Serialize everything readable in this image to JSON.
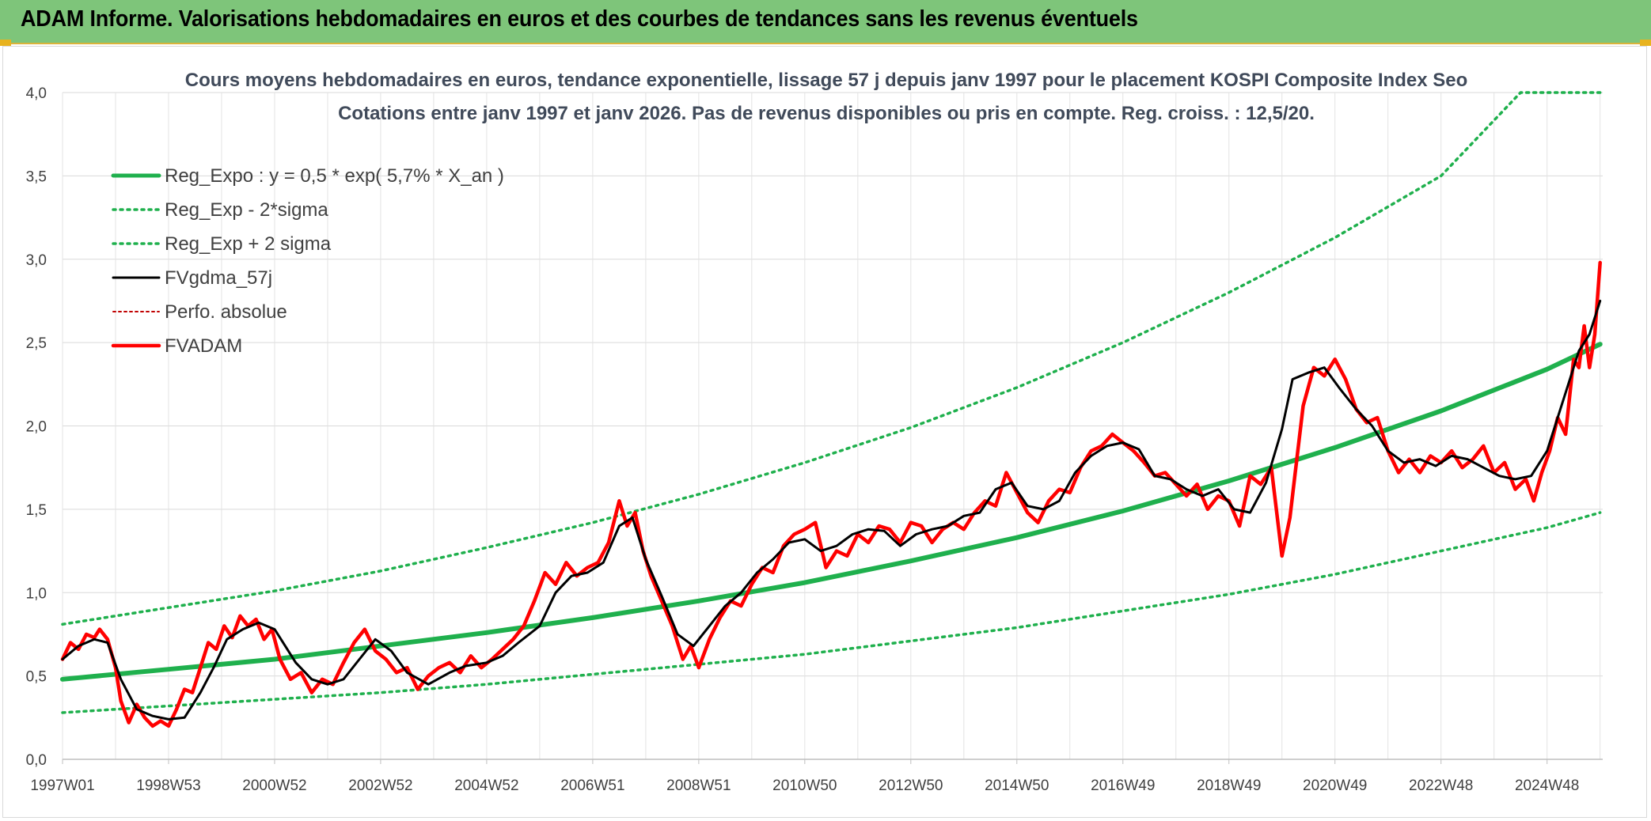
{
  "banner": {
    "title": "ADAM Informe. Valorisations hebdomadaires en euros et des courbes de tendances sans les revenus éventuels"
  },
  "colors": {
    "banner_bg": "#7ec57a",
    "reg_expo": "#1fb04d",
    "fvgdma": "#000000",
    "fvadam": "#ff0000",
    "perfo": "#c00000"
  },
  "chart_data": {
    "type": "line",
    "title": "Cours moyens hebdomadaires en euros, tendance exponentielle, lissage 57 j depuis janv 1997 pour le placement KOSPI Composite Index Seo",
    "subtitle": "Cotations entre janv 1997 et janv 2026. Pas de revenus disponibles ou pris en compte. Reg. croiss. : 12,5/20.",
    "xlim": [
      1997.0,
      2026.05
    ],
    "ylim": [
      0,
      4.0
    ],
    "grid": true,
    "legend_position": "top-left",
    "y_ticks": [
      "0,0",
      "0,5",
      "1,0",
      "1,5",
      "2,0",
      "2,5",
      "3,0",
      "3,5",
      "4,0"
    ],
    "x_ticks": [
      {
        "x": 1997.0,
        "label": "1997W01"
      },
      {
        "x": 1999.0,
        "label": "1998W53"
      },
      {
        "x": 2001.0,
        "label": "2000W52"
      },
      {
        "x": 2003.0,
        "label": "2002W52"
      },
      {
        "x": 2005.0,
        "label": "2004W52"
      },
      {
        "x": 2007.0,
        "label": "2006W51"
      },
      {
        "x": 2009.0,
        "label": "2008W51"
      },
      {
        "x": 2011.0,
        "label": "2010W50"
      },
      {
        "x": 2013.0,
        "label": "2012W50"
      },
      {
        "x": 2015.0,
        "label": "2014W50"
      },
      {
        "x": 2017.0,
        "label": "2016W49"
      },
      {
        "x": 2019.0,
        "label": "2018W49"
      },
      {
        "x": 2021.0,
        "label": "2020W49"
      },
      {
        "x": 2023.0,
        "label": "2022W48"
      },
      {
        "x": 2025.0,
        "label": "2024W48"
      }
    ],
    "series": [
      {
        "name": "Reg_Expo : y = 0,5 * exp( 5,7% *  X_an )",
        "key": "reg",
        "x": [
          1997.0,
          1999.0,
          2001.0,
          2003.0,
          2005.0,
          2007.0,
          2009.0,
          2011.0,
          2013.0,
          2015.0,
          2017.0,
          2019.0,
          2021.0,
          2023.0,
          2025.0,
          2026.0
        ],
        "values": [
          0.48,
          0.54,
          0.6,
          0.68,
          0.76,
          0.85,
          0.95,
          1.06,
          1.19,
          1.33,
          1.49,
          1.67,
          1.87,
          2.09,
          2.34,
          2.49
        ]
      },
      {
        "name": "Reg_Exp - 2*sigma",
        "key": "lower",
        "x": [
          1997.0,
          1999.0,
          2001.0,
          2003.0,
          2005.0,
          2007.0,
          2009.0,
          2011.0,
          2013.0,
          2015.0,
          2017.0,
          2019.0,
          2021.0,
          2023.0,
          2025.0,
          2026.0
        ],
        "values": [
          0.28,
          0.32,
          0.36,
          0.4,
          0.45,
          0.51,
          0.57,
          0.63,
          0.71,
          0.79,
          0.89,
          0.99,
          1.11,
          1.25,
          1.39,
          1.48
        ]
      },
      {
        "name": "Reg_Exp + 2 sigma",
        "key": "upper",
        "x": [
          1997.0,
          1999.0,
          2001.0,
          2003.0,
          2005.0,
          2007.0,
          2009.0,
          2011.0,
          2013.0,
          2015.0,
          2017.0,
          2019.0,
          2021.0,
          2023.0,
          2024.5,
          2025.0,
          2026.0
        ],
        "values": [
          0.81,
          0.91,
          1.01,
          1.13,
          1.27,
          1.42,
          1.59,
          1.78,
          1.99,
          2.23,
          2.5,
          2.8,
          3.13,
          3.5,
          4.0,
          4.0,
          4.0
        ]
      },
      {
        "name": "FVgdma_57j",
        "key": "smooth",
        "x": [
          1997.0,
          1997.3,
          1997.6,
          1997.85,
          1998.1,
          1998.4,
          1998.7,
          1999.0,
          1999.3,
          1999.6,
          1999.85,
          2000.1,
          2000.4,
          2000.7,
          2001.0,
          2001.4,
          2001.7,
          2002.0,
          2002.3,
          2002.6,
          2002.9,
          2003.2,
          2003.5,
          2003.9,
          2004.3,
          2004.6,
          2005.0,
          2005.3,
          2005.6,
          2006.0,
          2006.3,
          2006.6,
          2006.9,
          2007.2,
          2007.5,
          2007.75,
          2008.0,
          2008.3,
          2008.6,
          2008.9,
          2009.2,
          2009.5,
          2009.8,
          2010.1,
          2010.4,
          2010.7,
          2011.0,
          2011.3,
          2011.6,
          2011.9,
          2012.2,
          2012.5,
          2012.8,
          2013.1,
          2013.4,
          2013.7,
          2014.0,
          2014.3,
          2014.6,
          2014.9,
          2015.2,
          2015.5,
          2015.8,
          2016.1,
          2016.4,
          2016.7,
          2017.0,
          2017.3,
          2017.6,
          2017.9,
          2018.2,
          2018.5,
          2018.8,
          2019.1,
          2019.4,
          2019.7,
          2020.0,
          2020.2,
          2020.5,
          2020.8,
          2021.1,
          2021.4,
          2021.7,
          2022.0,
          2022.3,
          2022.6,
          2022.9,
          2023.2,
          2023.5,
          2023.8,
          2024.1,
          2024.4,
          2024.7,
          2025.0,
          2025.3,
          2025.6,
          2025.8,
          2026.0
        ],
        "values": [
          0.6,
          0.68,
          0.72,
          0.7,
          0.48,
          0.3,
          0.26,
          0.24,
          0.25,
          0.4,
          0.55,
          0.72,
          0.78,
          0.82,
          0.78,
          0.58,
          0.48,
          0.45,
          0.48,
          0.6,
          0.72,
          0.65,
          0.52,
          0.45,
          0.52,
          0.56,
          0.58,
          0.62,
          0.7,
          0.8,
          1.0,
          1.1,
          1.12,
          1.18,
          1.4,
          1.45,
          1.2,
          0.98,
          0.75,
          0.68,
          0.8,
          0.92,
          1.0,
          1.12,
          1.2,
          1.3,
          1.32,
          1.25,
          1.28,
          1.35,
          1.38,
          1.37,
          1.28,
          1.35,
          1.38,
          1.4,
          1.46,
          1.48,
          1.62,
          1.66,
          1.52,
          1.5,
          1.55,
          1.72,
          1.82,
          1.88,
          1.9,
          1.86,
          1.7,
          1.68,
          1.62,
          1.58,
          1.62,
          1.5,
          1.48,
          1.66,
          1.98,
          2.28,
          2.32,
          2.35,
          2.22,
          2.1,
          2.0,
          1.85,
          1.78,
          1.8,
          1.76,
          1.82,
          1.8,
          1.75,
          1.7,
          1.68,
          1.7,
          1.85,
          2.15,
          2.45,
          2.55,
          2.75
        ]
      },
      {
        "name": "Perfo. absolue",
        "key": "perfo",
        "x": [],
        "values": []
      },
      {
        "name": "FVADAM",
        "key": "adam",
        "x": [
          1997.0,
          1997.15,
          1997.3,
          1997.45,
          1997.6,
          1997.7,
          1997.85,
          1998.0,
          1998.1,
          1998.25,
          1998.4,
          1998.55,
          1998.7,
          1998.85,
          1999.0,
          1999.15,
          1999.3,
          1999.45,
          1999.6,
          1999.75,
          1999.9,
          2000.05,
          2000.2,
          2000.35,
          2000.5,
          2000.65,
          2000.8,
          2000.95,
          2001.1,
          2001.3,
          2001.5,
          2001.7,
          2001.9,
          2002.1,
          2002.3,
          2002.5,
          2002.7,
          2002.9,
          2003.1,
          2003.3,
          2003.5,
          2003.7,
          2003.9,
          2004.1,
          2004.3,
          2004.5,
          2004.7,
          2004.9,
          2005.1,
          2005.3,
          2005.5,
          2005.7,
          2005.9,
          2006.1,
          2006.3,
          2006.5,
          2006.7,
          2006.9,
          2007.1,
          2007.3,
          2007.5,
          2007.65,
          2007.8,
          2007.95,
          2008.1,
          2008.3,
          2008.5,
          2008.7,
          2008.85,
          2009.0,
          2009.2,
          2009.4,
          2009.6,
          2009.8,
          2010.0,
          2010.2,
          2010.4,
          2010.6,
          2010.8,
          2011.0,
          2011.2,
          2011.4,
          2011.6,
          2011.8,
          2012.0,
          2012.2,
          2012.4,
          2012.6,
          2012.8,
          2013.0,
          2013.2,
          2013.4,
          2013.6,
          2013.8,
          2014.0,
          2014.2,
          2014.4,
          2014.6,
          2014.8,
          2015.0,
          2015.2,
          2015.4,
          2015.6,
          2015.8,
          2016.0,
          2016.2,
          2016.4,
          2016.6,
          2016.8,
          2017.0,
          2017.2,
          2017.4,
          2017.6,
          2017.8,
          2018.0,
          2018.2,
          2018.4,
          2018.6,
          2018.8,
          2019.0,
          2019.2,
          2019.4,
          2019.6,
          2019.8,
          2020.0,
          2020.15,
          2020.25,
          2020.4,
          2020.6,
          2020.8,
          2021.0,
          2021.2,
          2021.4,
          2021.6,
          2021.8,
          2022.0,
          2022.2,
          2022.4,
          2022.6,
          2022.8,
          2023.0,
          2023.2,
          2023.4,
          2023.6,
          2023.8,
          2024.0,
          2024.2,
          2024.4,
          2024.6,
          2024.75,
          2024.9,
          2025.05,
          2025.2,
          2025.35,
          2025.5,
          2025.6,
          2025.7,
          2025.8,
          2025.9,
          2026.0
        ],
        "values": [
          0.6,
          0.7,
          0.66,
          0.75,
          0.73,
          0.78,
          0.72,
          0.55,
          0.35,
          0.22,
          0.33,
          0.25,
          0.2,
          0.23,
          0.2,
          0.3,
          0.42,
          0.4,
          0.55,
          0.7,
          0.66,
          0.8,
          0.73,
          0.86,
          0.8,
          0.84,
          0.72,
          0.78,
          0.6,
          0.48,
          0.52,
          0.4,
          0.48,
          0.45,
          0.58,
          0.7,
          0.78,
          0.65,
          0.6,
          0.52,
          0.55,
          0.42,
          0.5,
          0.55,
          0.58,
          0.52,
          0.62,
          0.55,
          0.6,
          0.66,
          0.72,
          0.8,
          0.95,
          1.12,
          1.05,
          1.18,
          1.1,
          1.15,
          1.18,
          1.3,
          1.55,
          1.4,
          1.48,
          1.25,
          1.1,
          0.95,
          0.8,
          0.6,
          0.68,
          0.55,
          0.72,
          0.85,
          0.95,
          0.92,
          1.05,
          1.15,
          1.12,
          1.28,
          1.35,
          1.38,
          1.42,
          1.15,
          1.25,
          1.22,
          1.35,
          1.3,
          1.4,
          1.38,
          1.3,
          1.42,
          1.4,
          1.3,
          1.38,
          1.42,
          1.38,
          1.48,
          1.55,
          1.52,
          1.72,
          1.6,
          1.48,
          1.42,
          1.55,
          1.62,
          1.6,
          1.75,
          1.85,
          1.88,
          1.95,
          1.9,
          1.85,
          1.78,
          1.7,
          1.72,
          1.65,
          1.58,
          1.65,
          1.5,
          1.58,
          1.55,
          1.4,
          1.7,
          1.65,
          1.75,
          1.22,
          1.45,
          1.72,
          2.12,
          2.35,
          2.3,
          2.4,
          2.28,
          2.1,
          2.02,
          2.05,
          1.85,
          1.72,
          1.8,
          1.72,
          1.82,
          1.78,
          1.85,
          1.75,
          1.8,
          1.88,
          1.72,
          1.78,
          1.62,
          1.68,
          1.55,
          1.72,
          1.85,
          2.05,
          1.95,
          2.4,
          2.35,
          2.6,
          2.35,
          2.55,
          2.98
        ]
      }
    ]
  }
}
